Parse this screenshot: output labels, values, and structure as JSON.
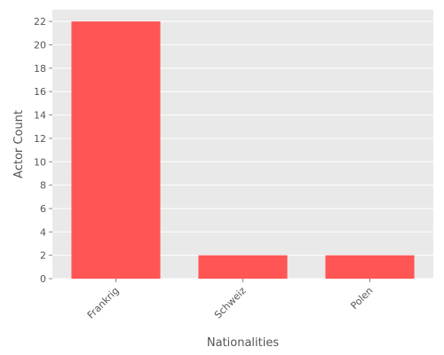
{
  "chart_data": {
    "type": "bar",
    "categories": [
      "Frankrig",
      "Schweiz",
      "Polen"
    ],
    "values": [
      22,
      2,
      2
    ],
    "title": "",
    "xlabel": "Nationalities",
    "ylabel": "Actor Count",
    "ylim": [
      0,
      23
    ],
    "yticks": [
      0,
      2,
      4,
      6,
      8,
      10,
      12,
      14,
      16,
      18,
      20,
      22
    ],
    "grid": true,
    "colors": {
      "bar": "#ff5555",
      "plot_background": "#e9e9e9",
      "grid": "#ffffff",
      "text": "#555555"
    }
  }
}
